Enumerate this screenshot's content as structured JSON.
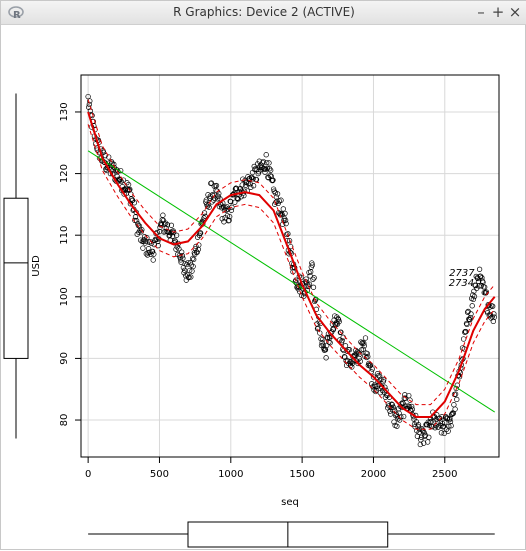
{
  "window": {
    "title": "R Graphics: Device 2 (ACTIVE)",
    "minimize_label": "–",
    "maximize_label": "+",
    "close_label": "×",
    "icon": "r-logo-icon"
  },
  "chart_data": {
    "type": "scatter",
    "title": "",
    "xlabel": "seq",
    "ylabel": "USD",
    "xlim": [
      -50,
      2880
    ],
    "ylim": [
      74,
      136
    ],
    "x_ticks": [
      0,
      500,
      1000,
      1500,
      2000,
      2500
    ],
    "y_ticks": [
      80,
      90,
      100,
      110,
      120,
      130
    ],
    "grid": true,
    "colors": {
      "points": "#000000",
      "smooth": "#e00000",
      "linear": "#00c000",
      "grid": "#d8d8d8"
    },
    "profile": [
      [
        0,
        132
      ],
      [
        20,
        129
      ],
      [
        60,
        125
      ],
      [
        100,
        122.5
      ],
      [
        150,
        121
      ],
      [
        200,
        120
      ],
      [
        260,
        118
      ],
      [
        300,
        116.5
      ],
      [
        340,
        112
      ],
      [
        380,
        109
      ],
      [
        420,
        108
      ],
      [
        460,
        107.5
      ],
      [
        520,
        112
      ],
      [
        560,
        111
      ],
      [
        600,
        109.5
      ],
      [
        640,
        108
      ],
      [
        680,
        104
      ],
      [
        720,
        104
      ],
      [
        760,
        108
      ],
      [
        800,
        112
      ],
      [
        860,
        117
      ],
      [
        900,
        116.5
      ],
      [
        940,
        114
      ],
      [
        980,
        113
      ],
      [
        1020,
        116
      ],
      [
        1060,
        117.5
      ],
      [
        1100,
        118
      ],
      [
        1140,
        119
      ],
      [
        1180,
        120
      ],
      [
        1220,
        121
      ],
      [
        1250,
        122
      ],
      [
        1280,
        119
      ],
      [
        1310,
        116
      ],
      [
        1340,
        115
      ],
      [
        1380,
        112
      ],
      [
        1420,
        107
      ],
      [
        1460,
        103
      ],
      [
        1500,
        101.5
      ],
      [
        1540,
        102
      ],
      [
        1570,
        106
      ],
      [
        1600,
        97
      ],
      [
        1630,
        94
      ],
      [
        1660,
        91
      ],
      [
        1700,
        94
      ],
      [
        1740,
        96
      ],
      [
        1780,
        93
      ],
      [
        1810,
        90.5
      ],
      [
        1850,
        89.5
      ],
      [
        1880,
        90
      ],
      [
        1920,
        91.5
      ],
      [
        1950,
        92
      ],
      [
        1980,
        88
      ],
      [
        2010,
        86
      ],
      [
        2040,
        86
      ],
      [
        2080,
        85
      ],
      [
        2120,
        82
      ],
      [
        2160,
        80
      ],
      [
        2200,
        81.5
      ],
      [
        2230,
        83
      ],
      [
        2260,
        82.5
      ],
      [
        2300,
        79
      ],
      [
        2340,
        77
      ],
      [
        2380,
        78
      ],
      [
        2420,
        80
      ],
      [
        2460,
        79
      ],
      [
        2500,
        79
      ],
      [
        2540,
        80
      ],
      [
        2580,
        84
      ],
      [
        2620,
        90
      ],
      [
        2660,
        96
      ],
      [
        2700,
        100
      ],
      [
        2737,
        103.5
      ],
      [
        2770,
        101
      ],
      [
        2800,
        99
      ],
      [
        2830,
        97.5
      ],
      [
        2850,
        97
      ]
    ],
    "n_points": 2850,
    "smooth_fit": [
      [
        0,
        130
      ],
      [
        100,
        122.5
      ],
      [
        200,
        118.5
      ],
      [
        300,
        115
      ],
      [
        400,
        112
      ],
      [
        500,
        109.5
      ],
      [
        600,
        108.5
      ],
      [
        700,
        109
      ],
      [
        800,
        111.5
      ],
      [
        900,
        115
      ],
      [
        1000,
        116.5
      ],
      [
        1100,
        117
      ],
      [
        1200,
        116.5
      ],
      [
        1300,
        114
      ],
      [
        1400,
        108
      ],
      [
        1500,
        102
      ],
      [
        1600,
        97
      ],
      [
        1700,
        94
      ],
      [
        1800,
        91.5
      ],
      [
        1900,
        89
      ],
      [
        2000,
        87
      ],
      [
        2100,
        84.5
      ],
      [
        2200,
        82
      ],
      [
        2300,
        80.5
      ],
      [
        2400,
        80.5
      ],
      [
        2500,
        83
      ],
      [
        2600,
        88
      ],
      [
        2700,
        94.5
      ],
      [
        2780,
        98
      ],
      [
        2850,
        100
      ]
    ],
    "band_offset": 2.0,
    "linear_fit": {
      "x": [
        0,
        2850
      ],
      "y": [
        123.7,
        81.3
      ]
    },
    "annotations": [
      {
        "text": "2737",
        "x": 2737,
        "y": 103.4
      },
      {
        "text": "2734",
        "x": 2734,
        "y": 102.7
      }
    ],
    "x_boxplot": {
      "min": 0,
      "q1": 700,
      "median": 1400,
      "q3": 2100,
      "max": 2850
    },
    "y_boxplot": {
      "min": 77,
      "q1": 90,
      "median": 105.5,
      "q3": 116,
      "max": 133
    }
  }
}
